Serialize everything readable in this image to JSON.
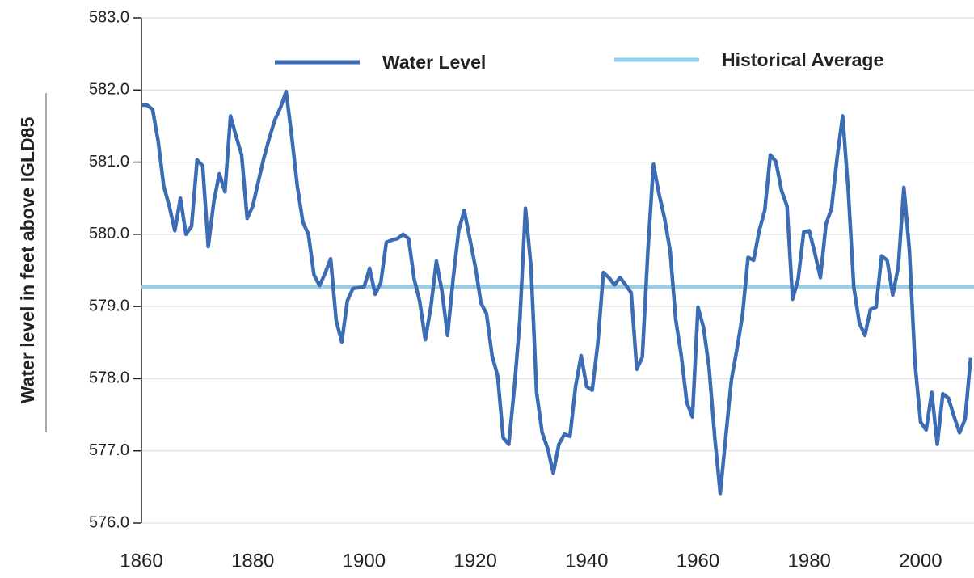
{
  "chart_data": {
    "type": "line",
    "y_label": "Water level in feet above IGLD85",
    "x": [
      1860,
      1861,
      1862,
      1863,
      1864,
      1865,
      1866,
      1867,
      1868,
      1869,
      1870,
      1871,
      1872,
      1873,
      1874,
      1875,
      1876,
      1877,
      1878,
      1879,
      1880,
      1881,
      1882,
      1883,
      1884,
      1885,
      1886,
      1887,
      1888,
      1889,
      1890,
      1891,
      1892,
      1893,
      1894,
      1895,
      1896,
      1897,
      1898,
      1899,
      1900,
      1901,
      1902,
      1903,
      1904,
      1905,
      1906,
      1907,
      1908,
      1909,
      1910,
      1911,
      1912,
      1913,
      1914,
      1915,
      1916,
      1917,
      1918,
      1919,
      1920,
      1921,
      1922,
      1923,
      1924,
      1925,
      1926,
      1927,
      1928,
      1929,
      1930,
      1931,
      1932,
      1933,
      1934,
      1935,
      1936,
      1937,
      1938,
      1939,
      1940,
      1941,
      1942,
      1943,
      1944,
      1945,
      1946,
      1947,
      1948,
      1949,
      1950,
      1951,
      1952,
      1953,
      1954,
      1955,
      1956,
      1957,
      1958,
      1959,
      1960,
      1961,
      1962,
      1963,
      1964,
      1965,
      1966,
      1967,
      1968,
      1969,
      1970,
      1971,
      1972,
      1973,
      1974,
      1975,
      1976,
      1977,
      1978,
      1979,
      1980,
      1981,
      1982,
      1983,
      1984,
      1985,
      1986,
      1987,
      1988,
      1989,
      1990,
      1991,
      1992,
      1993,
      1994,
      1995,
      1996,
      1997,
      1998,
      1999,
      2000,
      2001,
      2002,
      2003,
      2004,
      2005,
      2006,
      2007,
      2008,
      2009
    ],
    "series": [
      {
        "name": "Water Level",
        "color": "#3b6cb4",
        "values": [
          581.79,
          581.79,
          581.73,
          581.29,
          580.67,
          580.39,
          580.05,
          580.5,
          580.0,
          580.11,
          581.03,
          580.95,
          579.83,
          580.45,
          580.84,
          580.59,
          581.64,
          581.36,
          581.1,
          580.22,
          580.39,
          580.73,
          581.06,
          581.34,
          581.59,
          581.76,
          581.98,
          581.36,
          580.67,
          580.17,
          580.0,
          579.44,
          579.29,
          579.46,
          579.66,
          578.8,
          578.51,
          579.08,
          579.25,
          579.26,
          579.27,
          579.53,
          579.17,
          579.33,
          579.89,
          579.92,
          579.94,
          580.0,
          579.94,
          579.38,
          579.07,
          578.54,
          578.99,
          579.63,
          579.21,
          578.6,
          579.38,
          580.05,
          580.33,
          579.94,
          579.55,
          579.05,
          578.9,
          578.32,
          578.04,
          577.18,
          577.09,
          577.87,
          578.82,
          580.36,
          579.55,
          577.81,
          577.25,
          577.03,
          576.69,
          577.09,
          577.23,
          577.2,
          577.89,
          578.32,
          577.89,
          577.84,
          578.49,
          579.47,
          579.4,
          579.3,
          579.4,
          579.3,
          579.19,
          578.13,
          578.3,
          579.77,
          580.97,
          580.56,
          580.22,
          579.77,
          578.82,
          578.32,
          577.67,
          577.47,
          578.99,
          578.71,
          578.15,
          577.2,
          576.41,
          577.2,
          577.98,
          578.41,
          578.88,
          579.68,
          579.64,
          580.05,
          580.33,
          581.1,
          581.01,
          580.61,
          580.39,
          579.1,
          579.38,
          580.03,
          580.05,
          579.74,
          579.4,
          580.14,
          580.36,
          581.06,
          581.64,
          580.61,
          579.27,
          578.77,
          578.6,
          578.96,
          578.99,
          579.7,
          579.64,
          579.16,
          579.55,
          580.65,
          579.77,
          578.21,
          577.4,
          577.29,
          577.81,
          577.09,
          577.79,
          577.73,
          577.48,
          577.25,
          577.44,
          578.29
        ]
      }
    ],
    "hlines": [
      {
        "name": "Historical Average",
        "color": "#8fd0ef",
        "value": 579.27
      }
    ],
    "xlim": [
      1860,
      2009.6
    ],
    "xticks": [
      1860,
      1880,
      1900,
      1920,
      1940,
      1960,
      1980,
      2000
    ],
    "ylim": [
      576,
      583
    ],
    "yticks": [
      {
        "value": 576,
        "label": "576.0"
      },
      {
        "value": 577,
        "label": "577.0"
      },
      {
        "value": 578,
        "label": "578.0"
      },
      {
        "value": 579,
        "label": "579.0"
      },
      {
        "value": 580,
        "label": "580.0"
      },
      {
        "value": 581,
        "label": "581.0"
      },
      {
        "value": 582,
        "label": "582.0"
      },
      {
        "value": 583,
        "label": "583.0"
      }
    ],
    "grid": true,
    "legend": "top"
  }
}
